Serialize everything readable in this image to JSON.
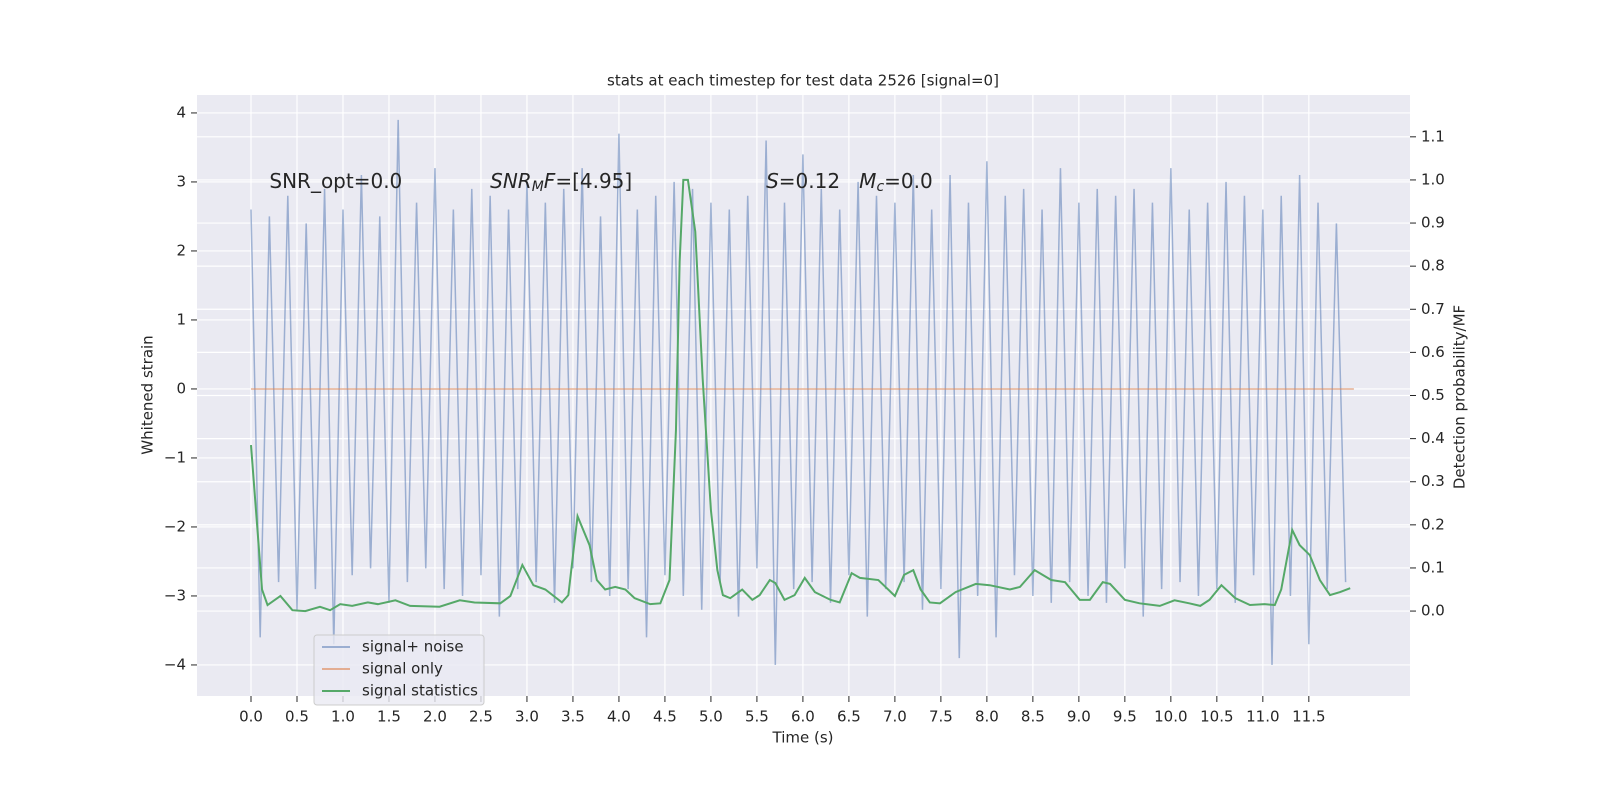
{
  "chart_data": {
    "type": "line",
    "title": "stats at each timestep for test data 2526 [signal=0]",
    "xlabel": "Time (s)",
    "ylabel": "Whitened strain",
    "y2label": "Detection probability/MF",
    "annotations": [
      {
        "x": 0.2,
        "y": 3.0,
        "parts": [
          {
            "text": "SNR_opt=0.0",
            "style": "normal"
          }
        ]
      },
      {
        "x": 2.6,
        "y": 3.0,
        "parts": [
          {
            "text": "SNR",
            "style": "italic"
          },
          {
            "text": "M",
            "style": "sub"
          },
          {
            "text": "F",
            "style": "italic"
          },
          {
            "text": "=[4.95]",
            "style": "normal"
          }
        ]
      },
      {
        "x": 5.6,
        "y": 3.0,
        "parts": [
          {
            "text": "S",
            "style": "italic"
          },
          {
            "text": "=0.12   ",
            "style": "normal"
          },
          {
            "text": "M",
            "style": "italic"
          },
          {
            "text": "c",
            "style": "sub"
          },
          {
            "text": "=0.0",
            "style": "normal"
          }
        ]
      }
    ],
    "xlim": [
      -0.587,
      12.6
    ],
    "ylim": [
      -4.45,
      4.26
    ],
    "y2lim": [
      -0.197,
      1.197
    ],
    "xticks": [
      {
        "value": 0,
        "label": "0.0"
      },
      0.5,
      {
        "value": 1,
        "label": "1.0"
      },
      1.5,
      {
        "value": 2,
        "label": "2.0"
      },
      2.5,
      {
        "value": 3,
        "label": "3.0"
      },
      3.5,
      {
        "value": 4,
        "label": "4.0"
      },
      4.5,
      {
        "value": 5,
        "label": "5.0"
      },
      5.5,
      {
        "value": 6,
        "label": "6.0"
      },
      6.5,
      {
        "value": 7,
        "label": "7.0"
      },
      7.5,
      {
        "value": 8,
        "label": "8.0"
      },
      8.5,
      {
        "value": 9,
        "label": "9.0"
      },
      9.5,
      {
        "value": 10,
        "label": "10.0"
      },
      10.5,
      {
        "value": 11,
        "label": "11.0"
      },
      11.5
    ],
    "yticks": [
      {
        "value": -4,
        "label": "−4"
      },
      {
        "value": -3,
        "label": "−3"
      },
      {
        "value": -2,
        "label": "−2"
      },
      {
        "value": -1,
        "label": "−1"
      },
      0,
      1,
      2,
      3,
      4
    ],
    "y2ticks": [
      {
        "value": 0,
        "label": "0.0"
      },
      0.1,
      0.2,
      0.3,
      0.4,
      0.5,
      0.6,
      0.7,
      0.8,
      0.9,
      {
        "value": 1,
        "label": "1.0"
      },
      1.1
    ],
    "grid": true,
    "legend": "lower left",
    "series": [
      {
        "name": "signal+ noise",
        "color": "#4c72b0",
        "opacity": 0.5,
        "x": [
          0,
          0.1,
          0.2,
          0.3,
          0.4,
          0.5,
          0.6,
          0.7,
          0.8,
          0.9,
          1,
          1.1,
          1.2,
          1.3,
          1.4,
          1.5,
          1.6,
          1.7,
          1.8,
          1.9,
          2,
          2.1,
          2.2,
          2.3,
          2.4,
          2.5,
          2.6,
          2.7,
          2.8,
          2.9,
          3,
          3.1,
          3.2,
          3.3,
          3.4,
          3.5,
          3.6,
          3.7,
          3.8,
          3.9,
          4,
          4.1,
          4.2,
          4.3,
          4.4,
          4.5,
          4.6,
          4.7,
          4.8,
          4.9,
          5,
          5.1,
          5.2,
          5.3,
          5.4,
          5.5,
          5.6,
          5.7,
          5.8,
          5.9,
          6,
          6.1,
          6.2,
          6.3,
          6.4,
          6.5,
          6.6,
          6.7,
          6.8,
          6.9,
          7,
          7.1,
          7.2,
          7.3,
          7.4,
          7.5,
          7.6,
          7.7,
          7.8,
          7.9,
          8,
          8.1,
          8.2,
          8.3,
          8.4,
          8.5,
          8.6,
          8.7,
          8.8,
          8.9,
          9,
          9.1,
          9.2,
          9.3,
          9.4,
          9.5,
          9.6,
          9.7,
          9.8,
          9.9,
          10,
          10.1,
          10.2,
          10.3,
          10.4,
          10.5,
          10.6,
          10.7,
          10.8,
          10.9,
          11,
          11.1,
          11.2,
          11.3,
          11.4,
          11.5,
          11.6,
          11.7,
          11.8,
          11.9
        ],
        "values": [
          2.6,
          -3.6,
          2.5,
          -2.8,
          2.8,
          -3.2,
          2.4,
          -2.9,
          2.9,
          -3.7,
          2.6,
          -2.7,
          3.1,
          -2.6,
          2.5,
          -3.1,
          3.9,
          -2.8,
          2.7,
          -2.6,
          3.2,
          -2.9,
          2.6,
          -3.0,
          2.9,
          -2.7,
          2.8,
          -3.3,
          2.6,
          -2.9,
          3.0,
          -2.8,
          2.7,
          -3.1,
          2.9,
          -2.6,
          3.2,
          -2.8,
          2.5,
          -3.0,
          3.7,
          -2.9,
          2.6,
          -3.6,
          2.8,
          -2.7,
          3.0,
          -3.0,
          2.9,
          -3.2,
          2.7,
          -2.8,
          2.6,
          -3.3,
          2.8,
          -2.6,
          3.6,
          -4.0,
          2.7,
          -2.9,
          3.4,
          -2.8,
          2.9,
          -3.1,
          2.6,
          -2.7,
          3.0,
          -3.3,
          2.8,
          -2.9,
          2.7,
          -2.8,
          3.1,
          -3.2,
          2.6,
          -2.9,
          3.1,
          -3.9,
          2.7,
          -3.0,
          3.3,
          -3.6,
          2.8,
          -2.7,
          2.9,
          -3.0,
          2.6,
          -3.1,
          3.2,
          -2.8,
          2.7,
          -3.0,
          2.9,
          -3.1,
          2.8,
          -2.6,
          2.9,
          -3.3,
          2.7,
          -2.9,
          3.2,
          -2.8,
          2.6,
          -3.0,
          2.7,
          -2.9,
          3.0,
          -3.1,
          2.8,
          -2.7,
          2.6,
          -4.0,
          2.8,
          -3.0,
          3.1,
          -3.7,
          2.7,
          -2.9,
          2.4,
          -2.8
        ]
      },
      {
        "name": "signal only",
        "color": "#dd8452",
        "opacity": 0.6,
        "x": [
          0,
          11.99
        ],
        "values": [
          0,
          0
        ]
      },
      {
        "name": "signal statistics",
        "color": "#55a868",
        "axis": "y2",
        "x": [
          0,
          0.12,
          0.18,
          0.32,
          0.45,
          0.59,
          0.75,
          0.86,
          0.97,
          1.1,
          1.27,
          1.38,
          1.57,
          1.73,
          2.05,
          2.27,
          2.43,
          2.71,
          2.82,
          2.95,
          3.07,
          3.2,
          3.38,
          3.45,
          3.55,
          3.68,
          3.76,
          3.85,
          3.96,
          4.07,
          4.17,
          4.34,
          4.45,
          4.55,
          4.62,
          4.66,
          4.7,
          4.75,
          4.83,
          4.91,
          5.0,
          5.07,
          5.13,
          5.21,
          5.34,
          5.45,
          5.53,
          5.64,
          5.7,
          5.8,
          5.91,
          6.02,
          6.13,
          6.3,
          6.4,
          6.53,
          6.62,
          6.82,
          7.0,
          7.1,
          7.2,
          7.28,
          7.38,
          7.49,
          7.66,
          7.88,
          8.03,
          8.25,
          8.36,
          8.52,
          8.7,
          8.85,
          9.01,
          9.12,
          9.26,
          9.34,
          9.5,
          9.66,
          9.88,
          10.04,
          10.2,
          10.32,
          10.42,
          10.55,
          10.7,
          10.86,
          11.02,
          11.13,
          11.2,
          11.32,
          11.4,
          11.51,
          11.62,
          11.73,
          11.84,
          11.95
        ],
        "values": [
          0.385,
          0.05,
          0.014,
          0.035,
          0.002,
          0,
          0.01,
          0.002,
          0.016,
          0.012,
          0.02,
          0.016,
          0.025,
          0.012,
          0.01,
          0.025,
          0.02,
          0.018,
          0.035,
          0.107,
          0.06,
          0.05,
          0.02,
          0.037,
          0.22,
          0.153,
          0.072,
          0.05,
          0.056,
          0.05,
          0.03,
          0.016,
          0.018,
          0.072,
          0.42,
          0.81,
          1.0,
          1.0,
          0.88,
          0.54,
          0.234,
          0.095,
          0.037,
          0.03,
          0.05,
          0.026,
          0.037,
          0.072,
          0.065,
          0.026,
          0.037,
          0.077,
          0.044,
          0.026,
          0.02,
          0.088,
          0.077,
          0.072,
          0.035,
          0.084,
          0.095,
          0.05,
          0.02,
          0.018,
          0.044,
          0.063,
          0.06,
          0.05,
          0.056,
          0.095,
          0.072,
          0.067,
          0.026,
          0.026,
          0.067,
          0.063,
          0.026,
          0.018,
          0.012,
          0.025,
          0.018,
          0.012,
          0.026,
          0.06,
          0.03,
          0.014,
          0.016,
          0.014,
          0.05,
          0.188,
          0.153,
          0.13,
          0.072,
          0.037,
          0.044,
          0.053
        ]
      }
    ]
  }
}
